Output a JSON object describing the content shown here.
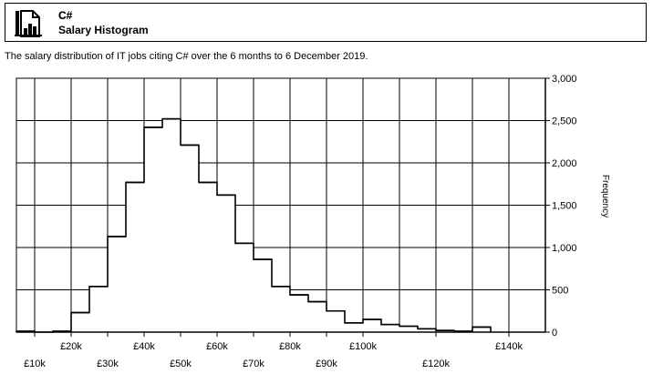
{
  "header": {
    "language": "C#",
    "title": "Salary Histogram",
    "icon": "document-chart-icon"
  },
  "subtitle": "The salary distribution of IT jobs citing C# over the 6 months to 6 December 2019.",
  "chart_data": {
    "type": "bar",
    "title": "",
    "xlabel": "",
    "ylabel": "Frequency",
    "xlim": [
      5000,
      150000
    ],
    "ylim": [
      0,
      3000
    ],
    "grid": true,
    "bin_width": 5000,
    "bins": [
      {
        "start": 5000,
        "value": 10
      },
      {
        "start": 10000,
        "value": 0
      },
      {
        "start": 15000,
        "value": 10
      },
      {
        "start": 20000,
        "value": 230
      },
      {
        "start": 25000,
        "value": 540
      },
      {
        "start": 30000,
        "value": 1130
      },
      {
        "start": 35000,
        "value": 1770
      },
      {
        "start": 40000,
        "value": 2420
      },
      {
        "start": 45000,
        "value": 2520
      },
      {
        "start": 50000,
        "value": 2210
      },
      {
        "start": 55000,
        "value": 1770
      },
      {
        "start": 60000,
        "value": 1620
      },
      {
        "start": 65000,
        "value": 1050
      },
      {
        "start": 70000,
        "value": 860
      },
      {
        "start": 75000,
        "value": 540
      },
      {
        "start": 80000,
        "value": 440
      },
      {
        "start": 85000,
        "value": 360
      },
      {
        "start": 90000,
        "value": 250
      },
      {
        "start": 95000,
        "value": 110
      },
      {
        "start": 100000,
        "value": 150
      },
      {
        "start": 105000,
        "value": 90
      },
      {
        "start": 110000,
        "value": 70
      },
      {
        "start": 115000,
        "value": 40
      },
      {
        "start": 120000,
        "value": 20
      },
      {
        "start": 125000,
        "value": 10
      },
      {
        "start": 130000,
        "value": 60
      }
    ],
    "y_ticks": [
      {
        "value": 0,
        "label": "0"
      },
      {
        "value": 500,
        "label": "500"
      },
      {
        "value": 1000,
        "label": "1,000"
      },
      {
        "value": 1500,
        "label": "1,500"
      },
      {
        "value": 2000,
        "label": "2,000"
      },
      {
        "value": 2500,
        "label": "2,500"
      },
      {
        "value": 3000,
        "label": "3,000"
      }
    ],
    "x_ticks_upper": [
      {
        "value": 20000,
        "label": "£20k"
      },
      {
        "value": 40000,
        "label": "£40k"
      },
      {
        "value": 60000,
        "label": "£60k"
      },
      {
        "value": 80000,
        "label": "£80k"
      },
      {
        "value": 100000,
        "label": "£100k"
      },
      {
        "value": 140000,
        "label": "£140k"
      }
    ],
    "x_ticks_lower": [
      {
        "value": 10000,
        "label": "£10k"
      },
      {
        "value": 30000,
        "label": "£30k"
      },
      {
        "value": 50000,
        "label": "£50k"
      },
      {
        "value": 70000,
        "label": "£70k"
      },
      {
        "value": 90000,
        "label": "£90k"
      },
      {
        "value": 120000,
        "label": "£120k"
      }
    ],
    "x_gridlines": [
      10000,
      20000,
      30000,
      40000,
      50000,
      60000,
      70000,
      80000,
      90000,
      100000,
      110000,
      120000,
      130000,
      140000
    ]
  }
}
